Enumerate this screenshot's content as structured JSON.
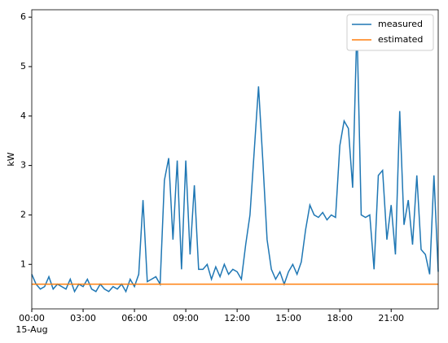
{
  "chart_data": {
    "type": "line",
    "x": [
      0,
      0.25,
      0.5,
      0.75,
      1,
      1.25,
      1.5,
      1.75,
      2,
      2.25,
      2.5,
      2.75,
      3,
      3.25,
      3.5,
      3.75,
      4,
      4.25,
      4.5,
      4.75,
      5,
      5.25,
      5.5,
      5.75,
      6,
      6.25,
      6.5,
      6.75,
      7,
      7.25,
      7.5,
      7.75,
      8,
      8.25,
      8.5,
      8.75,
      9,
      9.25,
      9.5,
      9.75,
      10,
      10.25,
      10.5,
      10.75,
      11,
      11.25,
      11.5,
      11.75,
      12,
      12.25,
      12.5,
      12.75,
      13,
      13.25,
      13.5,
      13.75,
      14,
      14.25,
      14.5,
      14.75,
      15,
      15.25,
      15.5,
      15.75,
      16,
      16.25,
      16.5,
      16.75,
      17,
      17.25,
      17.5,
      17.75,
      18,
      18.25,
      18.5,
      18.75,
      19,
      19.25,
      19.5,
      19.75,
      20,
      20.25,
      20.5,
      20.75,
      21,
      21.25,
      21.5,
      21.75,
      22,
      22.25,
      22.5,
      22.75,
      23,
      23.25,
      23.5,
      23.75
    ],
    "series": [
      {
        "name": "measured",
        "color": "#1f77b4",
        "values": [
          0.8,
          0.6,
          0.5,
          0.55,
          0.75,
          0.5,
          0.6,
          0.55,
          0.5,
          0.7,
          0.45,
          0.6,
          0.55,
          0.7,
          0.5,
          0.45,
          0.6,
          0.5,
          0.45,
          0.55,
          0.5,
          0.6,
          0.45,
          0.7,
          0.55,
          0.8,
          2.3,
          0.65,
          0.7,
          0.75,
          0.6,
          2.7,
          3.15,
          1.5,
          3.1,
          0.9,
          3.1,
          1.2,
          2.6,
          0.9,
          0.9,
          1.0,
          0.7,
          0.95,
          0.75,
          1.0,
          0.8,
          0.9,
          0.85,
          0.7,
          1.4,
          2.0,
          3.3,
          4.6,
          3.1,
          1.5,
          0.9,
          0.7,
          0.85,
          0.6,
          0.85,
          1.0,
          0.8,
          1.05,
          1.7,
          2.2,
          2.0,
          1.95,
          2.05,
          1.9,
          2.0,
          1.95,
          3.4,
          3.9,
          3.75,
          2.55,
          5.85,
          2.0,
          1.95,
          2.0,
          0.9,
          2.8,
          2.9,
          1.5,
          2.2,
          1.2,
          4.1,
          1.8,
          2.3,
          1.4,
          2.8,
          1.3,
          1.2,
          0.8,
          2.8,
          0.85
        ]
      },
      {
        "name": "estimated",
        "color": "#ff7f0e",
        "values": [
          0.6,
          0.6,
          0.6,
          0.6,
          0.6,
          0.6,
          0.6,
          0.6,
          0.6,
          0.6,
          0.6,
          0.6,
          0.6,
          0.6,
          0.6,
          0.6,
          0.6,
          0.6,
          0.6,
          0.6,
          0.6,
          0.6,
          0.6,
          0.6,
          0.6,
          0.6,
          0.6,
          0.6,
          0.6,
          0.6,
          0.6,
          0.6,
          0.6,
          0.6,
          0.6,
          0.6,
          0.6,
          0.6,
          0.6,
          0.6,
          0.6,
          0.6,
          0.6,
          0.6,
          0.6,
          0.6,
          0.6,
          0.6,
          0.6,
          0.6,
          0.6,
          0.6,
          0.6,
          0.6,
          0.6,
          0.6,
          0.6,
          0.6,
          0.6,
          0.6,
          0.6,
          0.6,
          0.6,
          0.6,
          0.6,
          0.6,
          0.6,
          0.6,
          0.6,
          0.6,
          0.6,
          0.6,
          0.6,
          0.6,
          0.6,
          0.6,
          0.6,
          0.6,
          0.6,
          0.6,
          0.6,
          0.6,
          0.6,
          0.6,
          0.6,
          0.6,
          0.6,
          0.6,
          0.6,
          0.6,
          0.6,
          0.6,
          0.6,
          0.6,
          0.6,
          0.6
        ]
      }
    ],
    "ylabel": "kW",
    "xlim": [
      0,
      23.75
    ],
    "xticks": [
      {
        "value": 0,
        "label": "00:00"
      },
      {
        "value": 3,
        "label": "03:00"
      },
      {
        "value": 6,
        "label": "06:00"
      },
      {
        "value": 9,
        "label": "09:00"
      },
      {
        "value": 12,
        "label": "12:00"
      },
      {
        "value": 15,
        "label": "15:00"
      },
      {
        "value": 18,
        "label": "18:00"
      },
      {
        "value": 21,
        "label": "21:00"
      }
    ],
    "x_date_label": "15-Aug",
    "ylim": [
      0.1,
      6.15
    ],
    "yticks": [
      1,
      2,
      3,
      4,
      5,
      6
    ],
    "legend": "upper right"
  }
}
